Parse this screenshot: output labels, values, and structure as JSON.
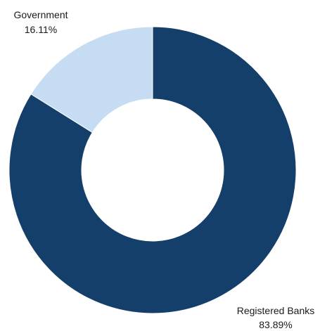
{
  "chart_data": {
    "type": "pie",
    "variant": "donut",
    "slices": [
      {
        "label": "Registered Banks",
        "value": 83.89,
        "value_label": "83.89%",
        "color": "#153f6b"
      },
      {
        "label": "Government",
        "value": 16.11,
        "value_label": "16.11%",
        "color": "#c5dcf2"
      }
    ]
  }
}
